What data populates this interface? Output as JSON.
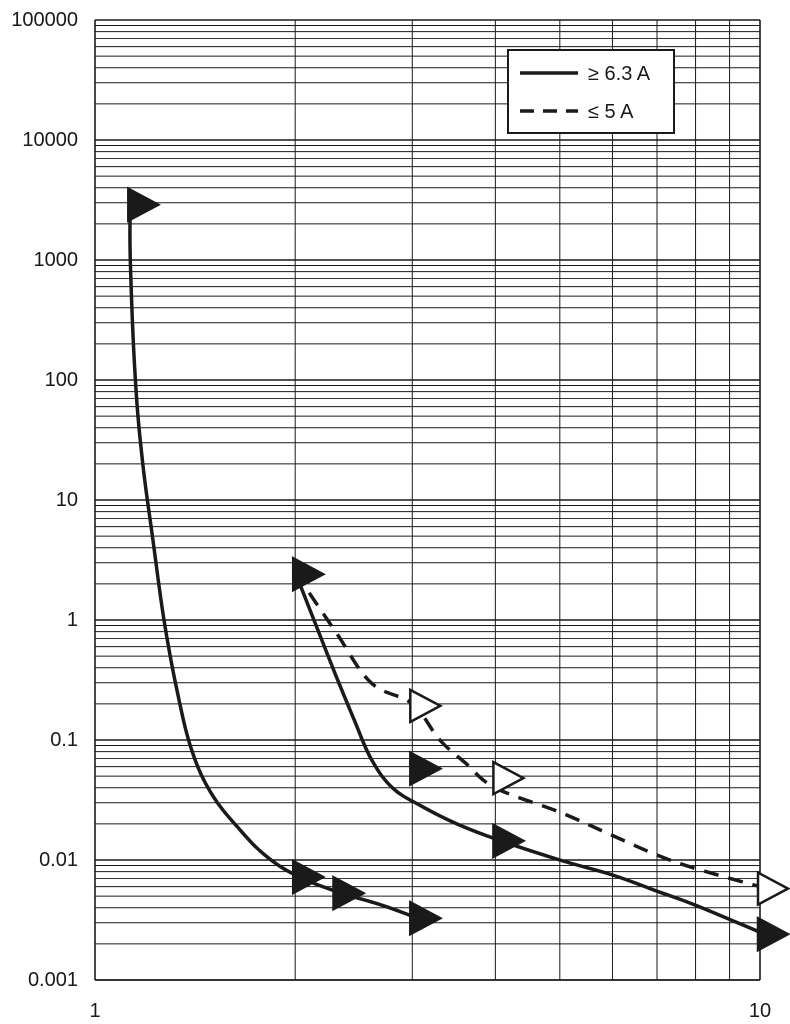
{
  "chart_data": {
    "type": "line",
    "title": "",
    "xlabel": "",
    "ylabel": "",
    "x_scale": "log",
    "y_scale": "log",
    "xlim": [
      1,
      10
    ],
    "ylim": [
      0.001,
      100000
    ],
    "grid": true,
    "x_ticks": [
      {
        "value": 1,
        "label": "1"
      },
      {
        "value": 10,
        "label": "10"
      }
    ],
    "y_ticks": [
      {
        "value": 0.001,
        "label": "0.001"
      },
      {
        "value": 0.01,
        "label": "0.01"
      },
      {
        "value": 0.1,
        "label": "0.1"
      },
      {
        "value": 1,
        "label": "1"
      },
      {
        "value": 10,
        "label": "10"
      },
      {
        "value": 100,
        "label": "100"
      },
      {
        "value": 1000,
        "label": "1000"
      },
      {
        "value": 10000,
        "label": "10000"
      },
      {
        "value": 100000,
        "label": "100000"
      }
    ],
    "legend": {
      "placement": "top-right",
      "entries": [
        {
          "label": "≥ 6.3 A",
          "style": "solid"
        },
        {
          "label": "≤ 5 A",
          "style": "dashed"
        }
      ]
    },
    "series": [
      {
        "group": "≥ 6.3 A",
        "style": "solid",
        "x": [
          1.13,
          1.13,
          1.15,
          1.18,
          1.22,
          1.27,
          1.33,
          1.4,
          1.5,
          1.65,
          1.8,
          2.0,
          2.3,
          2.7,
          3.0
        ],
        "y": [
          3000,
          1000,
          100,
          20,
          5,
          1,
          0.25,
          0.08,
          0.035,
          0.018,
          0.011,
          0.0075,
          0.0055,
          0.0042,
          0.0034
        ],
        "markers": [
          {
            "x": 1.13,
            "y": 3000,
            "shape": "filled-triangle"
          },
          {
            "x": 2.0,
            "y": 0.0075,
            "shape": "filled-triangle"
          },
          {
            "x": 2.3,
            "y": 0.0055,
            "shape": "filled-triangle"
          },
          {
            "x": 3.0,
            "y": 0.0034,
            "shape": "filled-triangle"
          }
        ]
      },
      {
        "group": "≥ 6.3 A",
        "style": "solid",
        "x": [
          2.0,
          2.15,
          2.3,
          2.45,
          2.6,
          2.8,
          3.1,
          3.5,
          4.0,
          5.0,
          6.0,
          7.0,
          8.0,
          10.0
        ],
        "y": [
          2.5,
          0.9,
          0.35,
          0.15,
          0.07,
          0.04,
          0.028,
          0.02,
          0.015,
          0.01,
          0.0075,
          0.0055,
          0.0042,
          0.0025
        ],
        "markers": [
          {
            "x": 2.0,
            "y": 2.5,
            "shape": "filled-triangle"
          },
          {
            "x": 3.0,
            "y": 0.06,
            "shape": "filled-triangle"
          },
          {
            "x": 4.0,
            "y": 0.015,
            "shape": "filled-triangle"
          },
          {
            "x": 10.0,
            "y": 0.0025,
            "shape": "filled-triangle"
          }
        ]
      },
      {
        "group": "≤ 5 A",
        "style": "dashed",
        "x": [
          2.0,
          2.3,
          2.6,
          3.0,
          3.3,
          3.6,
          4.0,
          5.0,
          6.0,
          7.0,
          8.0,
          10.0
        ],
        "y": [
          2.5,
          0.8,
          0.3,
          0.2,
          0.1,
          0.065,
          0.04,
          0.025,
          0.016,
          0.011,
          0.0085,
          0.006
        ],
        "markers": [
          {
            "x": 3.0,
            "y": 0.2,
            "shape": "open-triangle"
          },
          {
            "x": 4.0,
            "y": 0.05,
            "shape": "open-triangle"
          },
          {
            "x": 10.0,
            "y": 0.006,
            "shape": "open-triangle"
          }
        ]
      }
    ]
  }
}
